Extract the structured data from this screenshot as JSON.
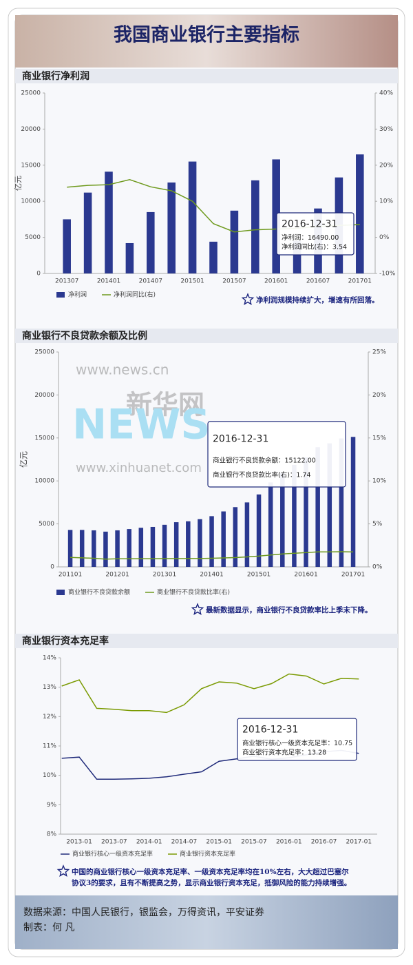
{
  "title": "我国商业银行主要指标",
  "chart_data": [
    {
      "type": "bar",
      "title": "商业银行净利润",
      "y_label": "亿元",
      "categories": [
        "201307",
        null,
        "201401",
        null,
        "201407",
        null,
        "201501",
        null,
        "201507",
        null,
        "201601",
        null,
        "201607",
        null,
        "201701"
      ],
      "series": [
        {
          "name": "净利润",
          "type": "bar",
          "color": "#2b3990",
          "values": [
            7500,
            11200,
            14100,
            4200,
            8500,
            12600,
            15500,
            4400,
            8700,
            12900,
            15800,
            4500,
            9000,
            13300,
            16490
          ]
        },
        {
          "name": "净利润同比(右)",
          "type": "line",
          "axis": "y2",
          "color": "#6f9a1e",
          "values": [
            13.9,
            14.4,
            14.6,
            16,
            14,
            12.9,
            10,
            3.8,
            1.5,
            2.1,
            2.3,
            2.5,
            3,
            3.3,
            3.54
          ]
        }
      ],
      "ylim": [
        0,
        25000
      ],
      "yticks": [
        0,
        5000,
        10000,
        15000,
        20000,
        25000
      ],
      "y2lim": [
        -10,
        40
      ],
      "y2ticks": [
        {
          "value": -10,
          "label": "-10%"
        },
        {
          "value": 0,
          "label": "0%"
        },
        {
          "value": 10,
          "label": "10%"
        },
        {
          "value": 20,
          "label": "20%"
        },
        {
          "value": 30,
          "label": "30%"
        },
        {
          "value": 40,
          "label": "40%"
        }
      ],
      "tooltip": [
        "2016-12-31",
        "净利润：16490.00",
        "净利润同比(右)：3.54"
      ],
      "note": [
        "净利润规模持续扩大，增速有所回落。"
      ]
    },
    {
      "type": "bar",
      "title": "商业银行不良贷款余额及比例",
      "y_label": "亿元",
      "categories": [
        "201101",
        null,
        null,
        null,
        "201201",
        null,
        null,
        null,
        "201301",
        null,
        null,
        null,
        "201401",
        null,
        null,
        null,
        "201501",
        null,
        null,
        null,
        "201601",
        null,
        null,
        null,
        "201701"
      ],
      "series": [
        {
          "name": "商业银行不良贷款余额",
          "type": "bar",
          "color": "#2b3990",
          "values": [
            4300,
            4300,
            4250,
            4100,
            4250,
            4400,
            4550,
            4650,
            4900,
            5200,
            5300,
            5550,
            5900,
            6450,
            6950,
            7500,
            8426,
            9825,
            10919,
            11863,
            12744,
            13921,
            14373,
            14939,
            15122
          ]
        },
        {
          "name": "商业银行不良贷款比率(右)",
          "type": "line",
          "axis": "y2",
          "color": "#6f9a1e",
          "values": [
            1.1,
            1.05,
            1.0,
            0.9,
            0.94,
            0.94,
            0.95,
            0.95,
            0.96,
            0.96,
            0.97,
            0.97,
            1.0,
            1.04,
            1.08,
            1.16,
            1.25,
            1.39,
            1.5,
            1.59,
            1.67,
            1.75,
            1.75,
            1.76,
            1.74
          ]
        }
      ],
      "ylim": [
        0,
        25000
      ],
      "yticks": [
        0,
        5000,
        10000,
        15000,
        20000,
        25000
      ],
      "y2lim": [
        0,
        25
      ],
      "y2ticks": [
        {
          "value": 0,
          "label": "0%"
        },
        {
          "value": 5,
          "label": "5%"
        },
        {
          "value": 10,
          "label": "10%"
        },
        {
          "value": 15,
          "label": "15%"
        },
        {
          "value": 20,
          "label": "20%"
        },
        {
          "value": 25,
          "label": "25%"
        }
      ],
      "tooltip": [
        "2016-12-31",
        "商业银行不良贷款余额：15122.00",
        "商业银行不良贷款比率(右)：1.74"
      ],
      "watermark": [
        "www.news.cn",
        "新华网",
        "NEWS",
        "www.xinhuanet.com"
      ],
      "note": [
        "最新数据显示，商业银行不良贷款率比上季末下降。"
      ]
    },
    {
      "type": "line",
      "title": "商业银行资本充足率",
      "categories": [
        null,
        "2013-01",
        null,
        "2013-07",
        null,
        "2014-01",
        null,
        "2014-07",
        null,
        "2015-01",
        null,
        "2015-07",
        null,
        "2016-01",
        null,
        "2016-07",
        null,
        "2017-01"
      ],
      "series": [
        {
          "name": "商业银行核心一级资本充足率",
          "type": "line",
          "color": "#1f2a7a",
          "values": [
            10.58,
            10.62,
            9.87,
            9.87,
            9.88,
            9.9,
            9.95,
            10.04,
            10.12,
            10.48,
            10.56,
            10.65,
            10.55,
            10.6,
            10.7,
            10.8,
            10.85,
            10.75
          ]
        },
        {
          "name": "商业银行资本充足率",
          "type": "line",
          "color": "#7a9a01",
          "values": [
            13.04,
            13.25,
            12.28,
            12.25,
            12.2,
            12.2,
            12.14,
            12.4,
            12.95,
            13.18,
            13.14,
            12.95,
            13.12,
            13.45,
            13.38,
            13.11,
            13.3,
            13.28
          ]
        }
      ],
      "ylim": [
        8,
        14
      ],
      "yticks": [
        {
          "value": 8,
          "label": "8%"
        },
        {
          "value": 9,
          "label": "9%"
        },
        {
          "value": 10,
          "label": "10%"
        },
        {
          "value": 11,
          "label": "11%"
        },
        {
          "value": 12,
          "label": "12%"
        },
        {
          "value": 13,
          "label": "13%"
        },
        {
          "value": 14,
          "label": "14%"
        }
      ],
      "tooltip": [
        "2016-12-31",
        "商业银行核心一级资本充足率：10.75",
        "商业银行资本充足率：13.28"
      ],
      "note": [
        "中国的商业银行核心一级资本充足率、一级资本充足率均在10%左右，大大超过巴塞尔",
        "协议3的要求，且有不断提高之势，显示商业银行资本充足，抵御风险的能力持续增强。"
      ]
    }
  ],
  "source": "数据来源：中国人民银行，银监会，万得资讯，平安证券",
  "maker": "制表：何 凡"
}
